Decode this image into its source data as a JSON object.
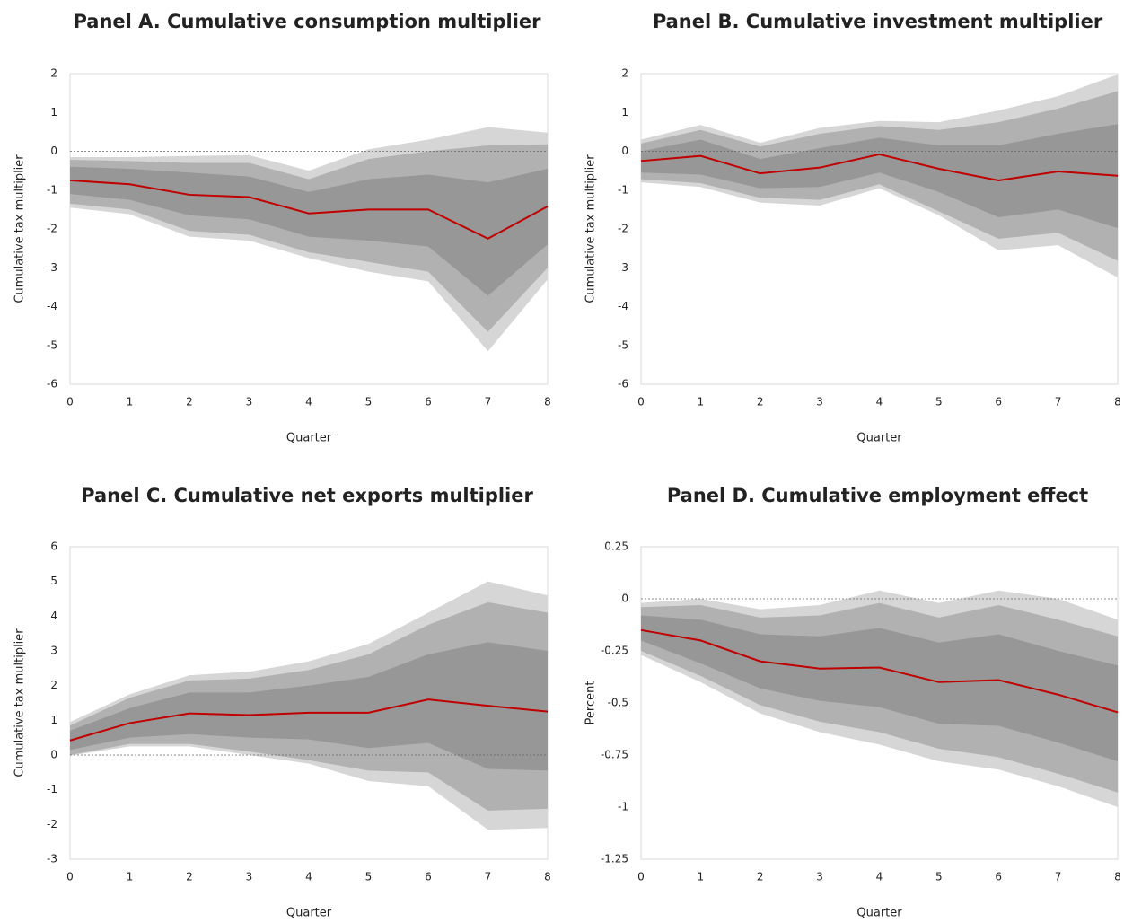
{
  "chart_data": [
    {
      "type": "line",
      "title": "Panel A. Cumulative consumption multiplier",
      "xlabel": "Quarter",
      "ylabel": "Cumulative tax multiplier",
      "x": [
        0,
        1,
        2,
        3,
        4,
        5,
        6,
        7,
        8
      ],
      "xlim": [
        0,
        8
      ],
      "xticks": [
        0,
        1,
        2,
        3,
        4,
        5,
        6,
        7,
        8
      ],
      "ylim": [
        -6,
        2
      ],
      "yticks": [
        2,
        1,
        0,
        -1,
        -2,
        -3,
        -4,
        -5,
        -6
      ],
      "zero_line": true,
      "bands": [
        {
          "color": "#d6d6d6",
          "upper": [
            -0.15,
            -0.15,
            -0.12,
            -0.1,
            -0.5,
            0.05,
            0.3,
            0.62,
            0.48
          ],
          "lower": [
            -1.45,
            -1.62,
            -2.2,
            -2.3,
            -2.75,
            -3.1,
            -3.35,
            -5.15,
            -3.3
          ]
        },
        {
          "color": "#b1b1b1",
          "upper": [
            -0.22,
            -0.25,
            -0.3,
            -0.3,
            -0.72,
            -0.2,
            0.0,
            0.15,
            0.18
          ],
          "lower": [
            -1.35,
            -1.5,
            -2.05,
            -2.15,
            -2.6,
            -2.85,
            -3.1,
            -4.65,
            -3.0
          ]
        },
        {
          "color": "#979797",
          "upper": [
            -0.4,
            -0.45,
            -0.55,
            -0.65,
            -1.05,
            -0.72,
            -0.6,
            -0.8,
            -0.45
          ],
          "lower": [
            -1.1,
            -1.25,
            -1.65,
            -1.75,
            -2.2,
            -2.3,
            -2.45,
            -3.72,
            -2.4
          ]
        }
      ],
      "series": [
        {
          "color": "#c00000",
          "values": [
            -0.75,
            -0.85,
            -1.12,
            -1.18,
            -1.6,
            -1.5,
            -1.5,
            -2.25,
            -1.42
          ]
        }
      ]
    },
    {
      "type": "line",
      "title": "Panel B. Cumulative investment multiplier",
      "xlabel": "Quarter",
      "ylabel": "Cumulative tax multiplier",
      "x": [
        0,
        1,
        2,
        3,
        4,
        5,
        6,
        7,
        8
      ],
      "xlim": [
        0,
        8
      ],
      "xticks": [
        0,
        1,
        2,
        3,
        4,
        5,
        6,
        7,
        8
      ],
      "ylim": [
        -6,
        2
      ],
      "yticks": [
        2,
        1,
        0,
        -1,
        -2,
        -3,
        -4,
        -5,
        -6
      ],
      "zero_line": true,
      "bands": [
        {
          "color": "#d6d6d6",
          "upper": [
            0.3,
            0.68,
            0.22,
            0.6,
            0.78,
            0.75,
            1.05,
            1.42,
            1.98
          ],
          "lower": [
            -0.8,
            -0.92,
            -1.32,
            -1.4,
            -0.95,
            -1.65,
            -2.55,
            -2.42,
            -3.25
          ]
        },
        {
          "color": "#b1b1b1",
          "upper": [
            0.2,
            0.55,
            0.12,
            0.45,
            0.65,
            0.55,
            0.75,
            1.1,
            1.55
          ],
          "lower": [
            -0.72,
            -0.82,
            -1.2,
            -1.25,
            -0.85,
            -1.55,
            -2.25,
            -2.1,
            -2.82
          ]
        },
        {
          "color": "#979797",
          "upper": [
            0.0,
            0.3,
            -0.2,
            0.08,
            0.35,
            0.15,
            0.15,
            0.45,
            0.7
          ],
          "lower": [
            -0.55,
            -0.6,
            -0.95,
            -0.92,
            -0.55,
            -1.05,
            -1.7,
            -1.5,
            -1.98
          ]
        }
      ],
      "series": [
        {
          "color": "#c00000",
          "values": [
            -0.25,
            -0.12,
            -0.57,
            -0.42,
            -0.08,
            -0.45,
            -0.75,
            -0.52,
            -0.63
          ]
        }
      ]
    },
    {
      "type": "line",
      "title": "Panel C. Cumulative net exports multiplier",
      "xlabel": "Quarter",
      "ylabel": "Cumulative tax multiplier",
      "x": [
        0,
        1,
        2,
        3,
        4,
        5,
        6,
        7,
        8
      ],
      "xlim": [
        0,
        8
      ],
      "xticks": [
        0,
        1,
        2,
        3,
        4,
        5,
        6,
        7,
        8
      ],
      "ylim": [
        -3,
        6
      ],
      "yticks": [
        6,
        5,
        4,
        3,
        2,
        1,
        0,
        -1,
        -2,
        -3
      ],
      "zero_line": true,
      "bands": [
        {
          "color": "#d6d6d6",
          "upper": [
            0.95,
            1.75,
            2.3,
            2.4,
            2.7,
            3.2,
            4.1,
            5.0,
            4.6
          ],
          "lower": [
            -0.02,
            0.25,
            0.25,
            0.0,
            -0.25,
            -0.75,
            -0.9,
            -2.15,
            -2.1
          ]
        },
        {
          "color": "#b1b1b1",
          "upper": [
            0.85,
            1.65,
            2.15,
            2.2,
            2.45,
            2.9,
            3.75,
            4.4,
            4.1
          ],
          "lower": [
            0.0,
            0.32,
            0.32,
            0.1,
            -0.15,
            -0.45,
            -0.5,
            -1.6,
            -1.55
          ]
        },
        {
          "color": "#979797",
          "upper": [
            0.7,
            1.35,
            1.8,
            1.8,
            2.0,
            2.25,
            2.9,
            3.25,
            3.0
          ],
          "lower": [
            0.15,
            0.5,
            0.6,
            0.5,
            0.45,
            0.2,
            0.35,
            -0.4,
            -0.45
          ]
        }
      ],
      "series": [
        {
          "color": "#c00000",
          "values": [
            0.42,
            0.92,
            1.2,
            1.15,
            1.22,
            1.22,
            1.6,
            1.42,
            1.25
          ]
        }
      ]
    },
    {
      "type": "line",
      "title": "Panel D. Cumulative employment effect",
      "xlabel": "Quarter",
      "ylabel": "Percent",
      "x": [
        0,
        1,
        2,
        3,
        4,
        5,
        6,
        7,
        8
      ],
      "xlim": [
        0,
        8
      ],
      "xticks": [
        0,
        1,
        2,
        3,
        4,
        5,
        6,
        7,
        8
      ],
      "ylim": [
        -1.25,
        0.25
      ],
      "yticks": [
        0.25,
        0,
        -0.25,
        -0.5,
        -0.75,
        -1,
        -1.25
      ],
      "zero_line": true,
      "bands": [
        {
          "color": "#d6d6d6",
          "upper": [
            -0.02,
            0.0,
            -0.05,
            -0.03,
            0.04,
            -0.02,
            0.04,
            0.0,
            -0.1
          ],
          "lower": [
            -0.27,
            -0.4,
            -0.55,
            -0.64,
            -0.7,
            -0.78,
            -0.82,
            -0.9,
            -1.0
          ]
        },
        {
          "color": "#b1b1b1",
          "upper": [
            -0.04,
            -0.03,
            -0.09,
            -0.08,
            -0.02,
            -0.09,
            -0.03,
            -0.1,
            -0.18
          ],
          "lower": [
            -0.25,
            -0.37,
            -0.51,
            -0.59,
            -0.64,
            -0.72,
            -0.76,
            -0.84,
            -0.93
          ]
        },
        {
          "color": "#979797",
          "upper": [
            -0.08,
            -0.1,
            -0.17,
            -0.18,
            -0.14,
            -0.21,
            -0.17,
            -0.25,
            -0.32
          ],
          "lower": [
            -0.2,
            -0.31,
            -0.43,
            -0.49,
            -0.52,
            -0.6,
            -0.61,
            -0.69,
            -0.78
          ]
        }
      ],
      "series": [
        {
          "color": "#c00000",
          "values": [
            -0.15,
            -0.2,
            -0.3,
            -0.335,
            -0.33,
            -0.4,
            -0.39,
            -0.46,
            -0.545
          ]
        }
      ]
    }
  ]
}
